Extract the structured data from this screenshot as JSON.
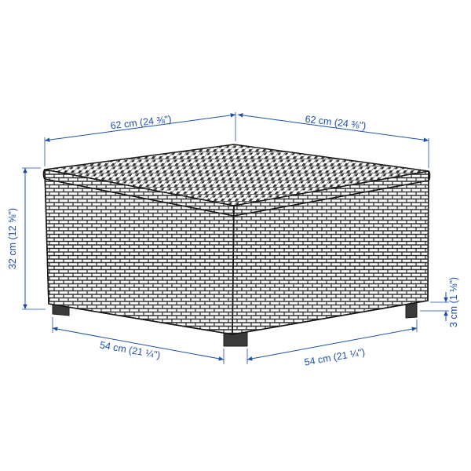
{
  "product": {
    "name": "wicker-ottoman-table"
  },
  "dimensions": {
    "top_left_width": "62 cm (24 ⅜\")",
    "top_right_depth": "62 cm (24 ⅜\")",
    "height": "32 cm (12 ⅝\")",
    "bottom_left_width": "54 cm (21 ¼\")",
    "bottom_right_depth": "54 cm (21 ¼\")",
    "leg_height": "3 cm (1 ⅛\")"
  },
  "colors": {
    "dimension": "#1e4fa6",
    "outline": "#1a1a1a",
    "weave": "#3a3a3a",
    "background": "#ffffff"
  }
}
